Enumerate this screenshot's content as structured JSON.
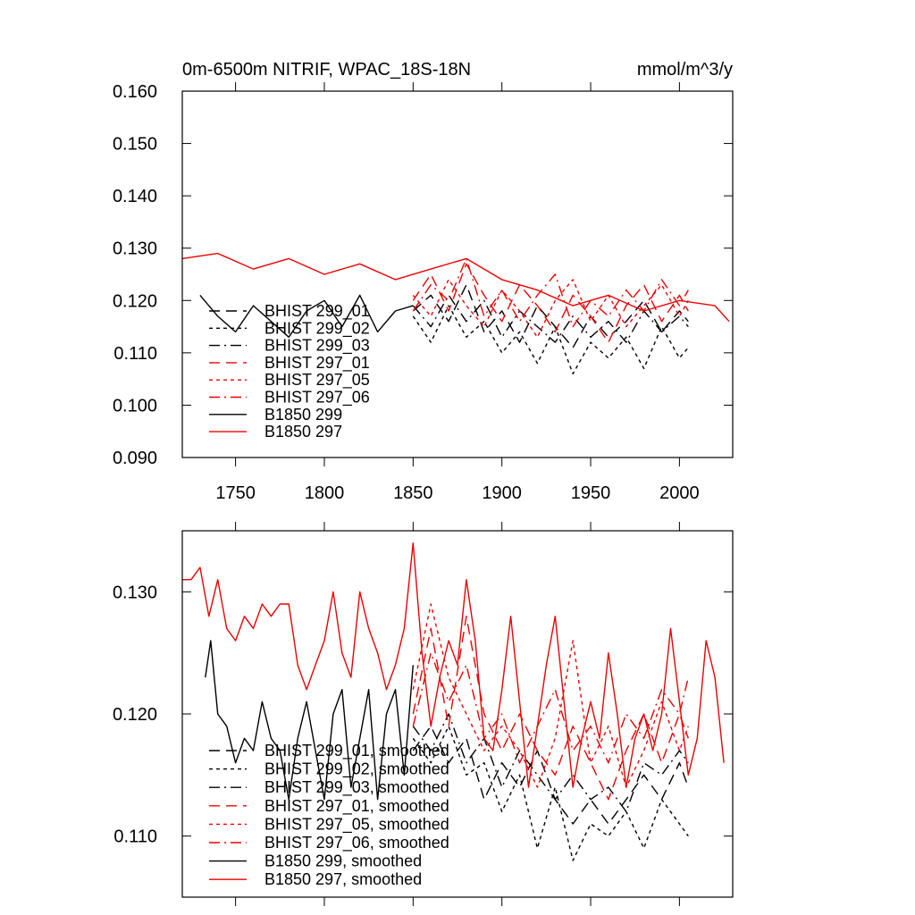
{
  "chart_data": [
    {
      "type": "line",
      "title": "0m-6500m NITRIF, WPAC_18S-18N",
      "units": "mmol/m^3/y",
      "xlim": [
        1720,
        2030
      ],
      "ylim": [
        0.09,
        0.16
      ],
      "x_ticks": [
        {
          "value": 1750,
          "label": "1750"
        },
        {
          "value": 1800,
          "label": "1800"
        },
        {
          "value": 1850,
          "label": "1850"
        },
        {
          "value": 1900,
          "label": "1900"
        },
        {
          "value": 1950,
          "label": "1950"
        },
        {
          "value": 2000,
          "label": "2000"
        }
      ],
      "y_ticks": [
        {
          "value": 0.09,
          "label": "0.090"
        },
        {
          "value": 0.1,
          "label": "0.100"
        },
        {
          "value": 0.11,
          "label": "0.110"
        },
        {
          "value": 0.12,
          "label": "0.120"
        },
        {
          "value": 0.13,
          "label": "0.130"
        },
        {
          "value": 0.14,
          "label": "0.140"
        },
        {
          "value": 0.15,
          "label": "0.150"
        },
        {
          "value": 0.16,
          "label": "0.160"
        }
      ],
      "grid": false,
      "legend_position": "bottom-left",
      "series": [
        {
          "name": "BHIST 299_01",
          "color": "#000000",
          "dash": "long-dash",
          "x": [
            1850,
            1860,
            1870,
            1880,
            1890,
            1900,
            1910,
            1920,
            1930,
            1940,
            1950,
            1960,
            1970,
            1980,
            1990,
            2000,
            2005
          ],
          "y": [
            0.118,
            0.121,
            0.116,
            0.123,
            0.114,
            0.118,
            0.112,
            0.119,
            0.115,
            0.111,
            0.117,
            0.113,
            0.116,
            0.12,
            0.114,
            0.118,
            0.116
          ]
        },
        {
          "name": "BHIST 299_02",
          "color": "#000000",
          "dash": "short-dash",
          "x": [
            1850,
            1860,
            1870,
            1880,
            1890,
            1900,
            1910,
            1920,
            1930,
            1940,
            1950,
            1960,
            1970,
            1980,
            1990,
            2000,
            2005
          ],
          "y": [
            0.117,
            0.112,
            0.119,
            0.113,
            0.116,
            0.11,
            0.114,
            0.108,
            0.115,
            0.106,
            0.112,
            0.109,
            0.113,
            0.107,
            0.115,
            0.109,
            0.111
          ]
        },
        {
          "name": "BHIST 299_03",
          "color": "#000000",
          "dash": "dash-dot",
          "x": [
            1850,
            1860,
            1870,
            1880,
            1890,
            1900,
            1910,
            1920,
            1930,
            1940,
            1950,
            1960,
            1970,
            1980,
            1990,
            2000,
            2005
          ],
          "y": [
            0.119,
            0.115,
            0.121,
            0.116,
            0.12,
            0.113,
            0.118,
            0.115,
            0.112,
            0.117,
            0.113,
            0.116,
            0.112,
            0.118,
            0.114,
            0.117,
            0.115
          ]
        },
        {
          "name": "BHIST 297_01",
          "color": "#ee0000",
          "dash": "long-dash",
          "x": [
            1850,
            1860,
            1870,
            1880,
            1890,
            1900,
            1910,
            1920,
            1930,
            1940,
            1950,
            1960,
            1970,
            1980,
            1990,
            2000,
            2005
          ],
          "y": [
            0.12,
            0.125,
            0.118,
            0.127,
            0.121,
            0.116,
            0.123,
            0.119,
            0.114,
            0.121,
            0.117,
            0.112,
            0.119,
            0.123,
            0.116,
            0.121,
            0.118
          ]
        },
        {
          "name": "BHIST 297_05",
          "color": "#ee0000",
          "dash": "short-dash",
          "x": [
            1850,
            1860,
            1870,
            1880,
            1890,
            1900,
            1910,
            1920,
            1930,
            1940,
            1950,
            1960,
            1970,
            1980,
            1990,
            2000,
            2005
          ],
          "y": [
            0.121,
            0.117,
            0.124,
            0.119,
            0.115,
            0.122,
            0.118,
            0.113,
            0.12,
            0.124,
            0.116,
            0.121,
            0.115,
            0.119,
            0.123,
            0.117,
            0.12
          ]
        },
        {
          "name": "BHIST 297_06",
          "color": "#ee0000",
          "dash": "dash-dot",
          "x": [
            1850,
            1860,
            1870,
            1880,
            1890,
            1900,
            1910,
            1920,
            1930,
            1940,
            1950,
            1960,
            1970,
            1980,
            1990,
            2000,
            2005
          ],
          "y": [
            0.118,
            0.123,
            0.12,
            0.128,
            0.117,
            0.122,
            0.116,
            0.121,
            0.125,
            0.115,
            0.12,
            0.117,
            0.122,
            0.118,
            0.124,
            0.119,
            0.122
          ]
        },
        {
          "name": "B1850 299",
          "color": "#000000",
          "dash": "solid",
          "x": [
            1730,
            1740,
            1750,
            1760,
            1770,
            1780,
            1790,
            1800,
            1810,
            1820,
            1830,
            1840,
            1850
          ],
          "y": [
            0.121,
            0.117,
            0.114,
            0.119,
            0.116,
            0.113,
            0.118,
            0.12,
            0.115,
            0.121,
            0.114,
            0.118,
            0.119
          ]
        },
        {
          "name": "B1850 297",
          "color": "#ee0000",
          "dash": "solid",
          "x": [
            1720,
            1740,
            1760,
            1780,
            1800,
            1820,
            1840,
            1860,
            1880,
            1900,
            1920,
            1940,
            1960,
            1980,
            2000,
            2020,
            2028
          ],
          "y": [
            0.128,
            0.129,
            0.126,
            0.128,
            0.125,
            0.127,
            0.124,
            0.126,
            0.128,
            0.124,
            0.122,
            0.119,
            0.121,
            0.118,
            0.12,
            0.119,
            0.116
          ]
        }
      ]
    },
    {
      "type": "line",
      "xlim": [
        1720,
        2030
      ],
      "ylim": [
        0.105,
        0.135
      ],
      "y_ticks": [
        {
          "value": 0.11,
          "label": "0.110"
        },
        {
          "value": 0.12,
          "label": "0.120"
        },
        {
          "value": 0.13,
          "label": "0.130"
        }
      ],
      "grid": false,
      "legend_position": "bottom-left",
      "series": [
        {
          "name": "BHIST 299_01, smoothed",
          "color": "#000000",
          "dash": "long-dash",
          "x": [
            1850,
            1860,
            1870,
            1880,
            1890,
            1900,
            1910,
            1920,
            1930,
            1940,
            1950,
            1960,
            1970,
            1980,
            1990,
            2000,
            2005
          ],
          "y": [
            0.117,
            0.119,
            0.116,
            0.118,
            0.113,
            0.116,
            0.114,
            0.117,
            0.113,
            0.111,
            0.113,
            0.111,
            0.113,
            0.115,
            0.113,
            0.116,
            0.114
          ]
        },
        {
          "name": "BHIST 299_02, smoothed",
          "color": "#000000",
          "dash": "short-dash",
          "x": [
            1850,
            1860,
            1870,
            1880,
            1890,
            1900,
            1910,
            1920,
            1930,
            1940,
            1950,
            1960,
            1970,
            1980,
            1990,
            2000,
            2005
          ],
          "y": [
            0.118,
            0.116,
            0.119,
            0.115,
            0.116,
            0.112,
            0.115,
            0.109,
            0.114,
            0.108,
            0.111,
            0.11,
            0.112,
            0.109,
            0.113,
            0.111,
            0.11
          ]
        },
        {
          "name": "BHIST 299_03, smoothed",
          "color": "#000000",
          "dash": "dash-dot",
          "x": [
            1850,
            1860,
            1870,
            1880,
            1890,
            1900,
            1910,
            1920,
            1930,
            1940,
            1950,
            1960,
            1970,
            1980,
            1990,
            2000,
            2005
          ],
          "y": [
            0.119,
            0.117,
            0.12,
            0.116,
            0.118,
            0.114,
            0.117,
            0.115,
            0.113,
            0.115,
            0.113,
            0.114,
            0.112,
            0.116,
            0.115,
            0.117,
            0.116
          ]
        },
        {
          "name": "BHIST 297_01, smoothed",
          "color": "#ee0000",
          "dash": "long-dash",
          "x": [
            1850,
            1860,
            1870,
            1880,
            1890,
            1900,
            1910,
            1920,
            1930,
            1940,
            1950,
            1960,
            1970,
            1980,
            1990,
            2000,
            2005
          ],
          "y": [
            0.12,
            0.127,
            0.119,
            0.128,
            0.12,
            0.117,
            0.12,
            0.117,
            0.115,
            0.119,
            0.116,
            0.113,
            0.117,
            0.12,
            0.116,
            0.12,
            0.118
          ]
        },
        {
          "name": "BHIST 297_05, smoothed",
          "color": "#ee0000",
          "dash": "short-dash",
          "x": [
            1850,
            1860,
            1870,
            1880,
            1890,
            1900,
            1910,
            1920,
            1930,
            1940,
            1950,
            1960,
            1970,
            1980,
            1990,
            2000,
            2005
          ],
          "y": [
            0.122,
            0.129,
            0.123,
            0.12,
            0.117,
            0.119,
            0.117,
            0.114,
            0.118,
            0.126,
            0.116,
            0.119,
            0.114,
            0.117,
            0.121,
            0.117,
            0.119
          ]
        },
        {
          "name": "BHIST 297_06, smoothed",
          "color": "#ee0000",
          "dash": "dash-dot",
          "x": [
            1850,
            1860,
            1870,
            1880,
            1890,
            1900,
            1910,
            1920,
            1930,
            1940,
            1950,
            1960,
            1970,
            1980,
            1990,
            2000,
            2005
          ],
          "y": [
            0.119,
            0.125,
            0.121,
            0.124,
            0.118,
            0.12,
            0.116,
            0.119,
            0.122,
            0.117,
            0.119,
            0.116,
            0.12,
            0.118,
            0.122,
            0.12,
            0.123
          ]
        },
        {
          "name": "B1850 299, smoothed",
          "color": "#000000",
          "dash": "solid",
          "x": [
            1733,
            1736,
            1740,
            1745,
            1750,
            1755,
            1760,
            1765,
            1770,
            1775,
            1780,
            1785,
            1790,
            1795,
            1800,
            1805,
            1810,
            1815,
            1820,
            1825,
            1830,
            1835,
            1840,
            1845,
            1850
          ],
          "y": [
            0.123,
            0.126,
            0.12,
            0.119,
            0.116,
            0.118,
            0.117,
            0.121,
            0.118,
            0.117,
            0.113,
            0.118,
            0.121,
            0.117,
            0.113,
            0.12,
            0.122,
            0.114,
            0.118,
            0.122,
            0.113,
            0.12,
            0.122,
            0.115,
            0.124
          ]
        },
        {
          "name": "B1850 297, smoothed",
          "color": "#ee0000",
          "dash": "solid",
          "x": [
            1720,
            1725,
            1730,
            1735,
            1740,
            1745,
            1750,
            1755,
            1760,
            1765,
            1770,
            1775,
            1780,
            1785,
            1790,
            1795,
            1800,
            1805,
            1810,
            1815,
            1820,
            1825,
            1830,
            1835,
            1840,
            1845,
            1850,
            1855,
            1860,
            1865,
            1870,
            1875,
            1880,
            1885,
            1890,
            1895,
            1900,
            1905,
            1910,
            1915,
            1920,
            1925,
            1930,
            1935,
            1940,
            1945,
            1950,
            1955,
            1960,
            1965,
            1970,
            1975,
            1980,
            1985,
            1990,
            1995,
            2000,
            2005,
            2010,
            2015,
            2020,
            2025
          ],
          "y": [
            0.131,
            0.131,
            0.132,
            0.128,
            0.131,
            0.127,
            0.126,
            0.128,
            0.127,
            0.129,
            0.128,
            0.129,
            0.129,
            0.124,
            0.122,
            0.124,
            0.126,
            0.13,
            0.125,
            0.123,
            0.13,
            0.127,
            0.125,
            0.122,
            0.124,
            0.127,
            0.134,
            0.125,
            0.119,
            0.123,
            0.126,
            0.124,
            0.131,
            0.126,
            0.118,
            0.117,
            0.122,
            0.128,
            0.121,
            0.114,
            0.119,
            0.124,
            0.128,
            0.121,
            0.114,
            0.118,
            0.121,
            0.118,
            0.125,
            0.12,
            0.114,
            0.118,
            0.12,
            0.117,
            0.12,
            0.127,
            0.121,
            0.115,
            0.118,
            0.126,
            0.123,
            0.116
          ]
        }
      ]
    }
  ]
}
